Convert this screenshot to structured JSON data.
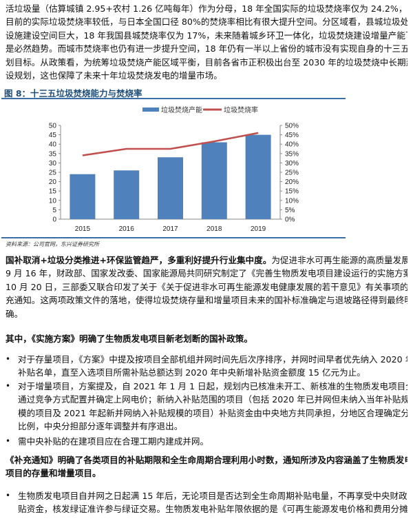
{
  "paragraph1": [
    "活垃圾量（估算城镇 2.95+农村 1.26 亿吨每年）作为分母，18 年全国实际的垃圾焚烧率仅为 24.2%，我国",
    "目前的实际垃圾焚烧率较低，与日本全国口径 80%的焚烧率相比有很大提升空间。分区域看，县城垃圾处置",
    "设施建设空间巨大，18 年我国县城焚烧率仅为 17%，未来随着城乡环卫一体化，垃圾焚烧建设增量产能下沉",
    "是必然趋势。而城市焚烧率也仍有进一步提升空间，18 年仍有一半以上省份的城市没有实现自身的十三五规",
    "划目标。从政策看，为统筹垃圾焚烧产能区域平衡，目前各省市正积极出台至 2030 年的垃圾焚烧中长期建",
    "设规划，这也保障了未来十年垃圾焚烧发电的增量市场。"
  ],
  "figure": {
    "title": "图 8：十三五垃圾焚烧能力与焚烧率",
    "source": "资料来源：公司官网，东兴证券研究所"
  },
  "chart_data": {
    "type": "bar",
    "title": "",
    "categories": [
      "2015",
      "2016",
      "2017",
      "2018",
      "2019"
    ],
    "series": [
      {
        "name": "垃圾焚烧产能",
        "type": "bar",
        "axis": "left",
        "values": [
          24,
          26,
          33,
          41,
          45
        ]
      },
      {
        "name": "垃圾焚烧率",
        "type": "line",
        "axis": "right",
        "values": [
          34,
          37.5,
          37.5,
          41.5,
          46
        ]
      }
    ],
    "left_axis": {
      "ylim": [
        0,
        50
      ],
      "ticks": [
        "0",
        "5",
        "10",
        "15",
        "20",
        "25",
        "30",
        "35",
        "40",
        "45",
        "50"
      ]
    },
    "right_axis": {
      "ylim": [
        0,
        50
      ],
      "ticks": [
        "0%",
        "5%",
        "10%",
        "15%",
        "20%",
        "25%",
        "30%",
        "35%",
        "40%",
        "45%",
        "50%"
      ]
    },
    "legend": "top",
    "grid": false,
    "colors": {
      "bar": "#4f81bd",
      "line": "#c0504d"
    }
  },
  "paragraph2": {
    "lead": "国补取消+垃圾分类推进+环保监管趋严，多重利好提升行业集中度。",
    "lines": [
      "为促进非水可再生能源的高质量发展，",
      "9 月 16 年，财政部、国家发改委、国家能源局共同研究制定了《完善生物质发电项目建设运行的实施方案》。",
      "10 月 20 日，三部委又联合印发了关于《关于促进非水可再生能源发电健康发展的若干意见》有关事项的补",
      "充通知。这两项政策文件的落地，使得垃圾焚烧存量和增量项目未来的国补标准确定与退坡路径得到最终明",
      "确。"
    ]
  },
  "paragraph3": "其中，《实施方案》明确了生物质发电项目新老划断的国补政策。",
  "bullets1": [
    [
      "对于存量项目，《方案》中提及按项目全部机组并网时间先后次序排序，并网时间早者优先纳入 2020 年",
      "补贴名单，直至入选项目所需补贴总额达到 2020 年中央新增补贴资金额度 15 亿元为止。"
    ],
    [
      "对于增量项目，方案提及，自 2021 年 1 月 1 日起，规划内已核准未开工、新核准的生物质发电项目全部",
      "通过竞争方式配置并确定上网电价；新纳入补贴范围的项目（包括 2020 年已并网但未纳入当年补贴规",
      "模的项目及 2021 年起新并网纳入补贴规模的项目）补贴资金由中央地方共同承担，分地区合理确定分担",
      "比例，中央分担部分逐年调整并有序退出。"
    ],
    [
      "需中央补贴的在建项目应在合理工期内建成并网。"
    ]
  ],
  "paragraph4": [
    "《补充通知》明确了各类项目的补贴期限和全生命周期合理利用小时数，通知所涉及内容涵盖了生物质发电",
    "项目的存量和增量项目。"
  ],
  "bullets2": [
    [
      "生物质发电项目自并网之日起满 15 年后，无论项目是否达到全生命周期补贴电量，不再享受中央财政补",
      "贴资金，核发绿证准许参与绿证交易。生物质发电补贴年限依据的是《可再生能源发电价格和费用分摊管"
    ]
  ],
  "bullet_symbol": "•"
}
